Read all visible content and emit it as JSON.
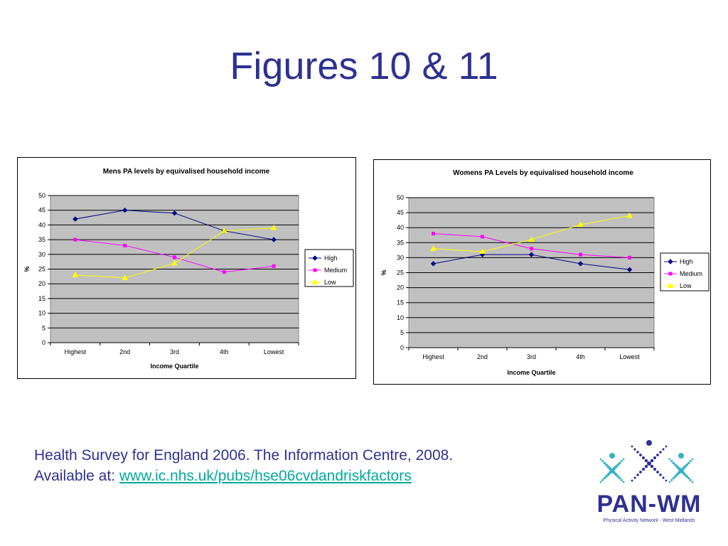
{
  "slide": {
    "title": "Figures 10 & 11",
    "citation_line1": "Health Survey for England 2006. The Information Centre, 2008.",
    "citation_prefix": "Available at: ",
    "citation_link": "www.ic.nhs.uk/pubs/hse06cvdandriskfactors"
  },
  "logo": {
    "text": "PAN-WM",
    "subtitle": "Physical Activity Network - West Midlands",
    "icon": "pan-wm-x-logo-icon",
    "colors": {
      "navy": "#2e3192",
      "teal": "#33b3c4"
    }
  },
  "chart_data": [
    {
      "type": "line",
      "title": "Mens PA levels by equivalised household income",
      "xlabel": "Income Quartile",
      "ylabel": "%",
      "categories": [
        "Highest",
        "2nd",
        "3rd",
        "4th",
        "Lowest"
      ],
      "ylim": [
        0,
        50
      ],
      "yticks": [
        "0",
        "5",
        "10",
        "15",
        "20",
        "25",
        "30",
        "35",
        "40",
        "45",
        "50"
      ],
      "grid": true,
      "plot_background": "#c0c0c0",
      "legend": "right",
      "series": [
        {
          "name": "High",
          "values": [
            42,
            45,
            44,
            38,
            35
          ],
          "color": "#000080",
          "marker": "diamond"
        },
        {
          "name": "Medium",
          "values": [
            35,
            33,
            29,
            24,
            26
          ],
          "color": "#ff00ff",
          "marker": "square"
        },
        {
          "name": "Low",
          "values": [
            23,
            22,
            27,
            38,
            39
          ],
          "color": "#ffff00",
          "marker": "triangle"
        }
      ]
    },
    {
      "type": "line",
      "title": "Womens PA Levels by equivalised household income",
      "xlabel": "Income Quartile",
      "ylabel": "%",
      "categories": [
        "Highest",
        "2nd",
        "3rd",
        "4th",
        "Lowest"
      ],
      "ylim": [
        0,
        50
      ],
      "yticks": [
        "0",
        "5",
        "10",
        "15",
        "20",
        "25",
        "30",
        "35",
        "40",
        "45",
        "50"
      ],
      "grid": true,
      "plot_background": "#c0c0c0",
      "legend": "right",
      "series": [
        {
          "name": "High",
          "values": [
            28,
            31,
            31,
            28,
            26
          ],
          "color": "#000080",
          "marker": "diamond"
        },
        {
          "name": "Medium",
          "values": [
            38,
            37,
            33,
            31,
            30
          ],
          "color": "#ff00ff",
          "marker": "square"
        },
        {
          "name": "Low",
          "values": [
            33,
            32,
            36,
            41,
            44
          ],
          "color": "#ffff00",
          "marker": "triangle"
        }
      ]
    }
  ]
}
